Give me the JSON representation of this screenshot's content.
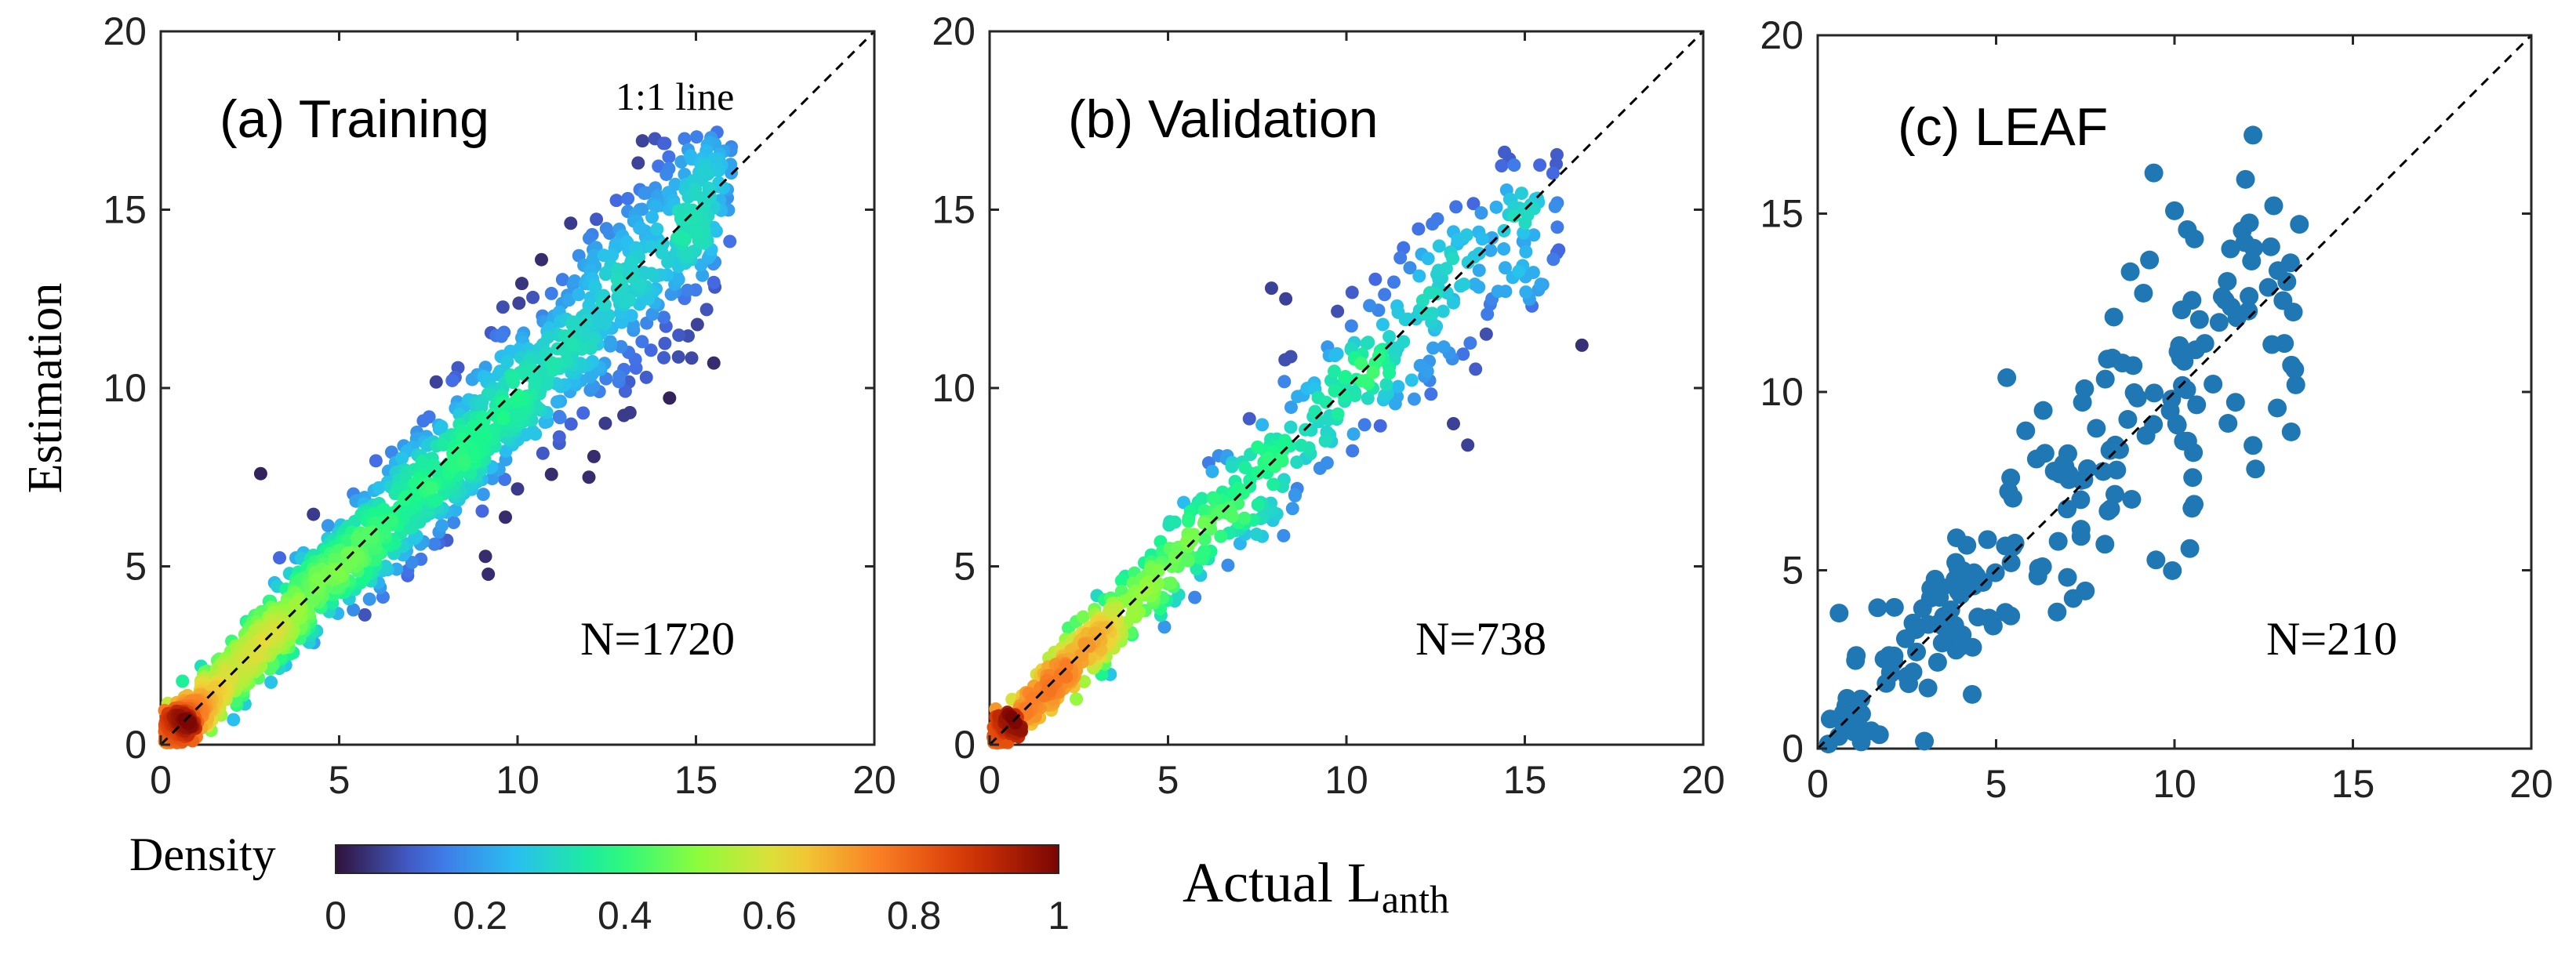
{
  "figure": {
    "x_axis_label": "Actual L",
    "x_axis_label_sub": "anth",
    "y_axis_label": "Estimation",
    "reference_line_label": "1:1 line"
  },
  "colorbar": {
    "label": "Density",
    "ticks": [
      "0",
      "0.2",
      "0.4",
      "0.6",
      "0.8",
      "1"
    ],
    "colormap": "turbo"
  },
  "chart_data": [
    {
      "type": "scatter",
      "panel": "a",
      "title": "(a) Training",
      "n_label": "N=1720",
      "color_mode": "density",
      "xlim": [
        0,
        20
      ],
      "ylim": [
        0,
        20
      ],
      "xticks": [
        "0",
        "5",
        "10",
        "15",
        "20"
      ],
      "yticks": [
        "0",
        "5",
        "10",
        "15",
        "20"
      ],
      "n_points": 1720,
      "noise_scale": 0.95,
      "sample_points": [
        {
          "x": 2.2,
          "y": 2.3
        },
        {
          "x": 3.1,
          "y": 3.0
        },
        {
          "x": 4.6,
          "y": 4.4
        },
        {
          "x": 7.4,
          "y": 7.3
        },
        {
          "x": 10.0,
          "y": 9.8
        },
        {
          "x": 12.8,
          "y": 12.8
        },
        {
          "x": 15.3,
          "y": 12.2
        },
        {
          "x": 14.7,
          "y": 13.5
        },
        {
          "x": 12.0,
          "y": 7.5
        },
        {
          "x": 2.8,
          "y": 7.6
        },
        {
          "x": 13.3,
          "y": 10.8
        },
        {
          "x": 15.5,
          "y": 10.7
        }
      ]
    },
    {
      "type": "scatter",
      "panel": "b",
      "title": "(b) Validation",
      "n_label": "N=738",
      "color_mode": "density",
      "xlim": [
        0,
        20
      ],
      "ylim": [
        0,
        20
      ],
      "xticks": [
        "0",
        "5",
        "10",
        "15",
        "20"
      ],
      "yticks": [
        "0",
        "5",
        "10",
        "15",
        "20"
      ],
      "n_points": 738,
      "noise_scale": 0.85,
      "sample_points": [
        {
          "x": 1.2,
          "y": 1.3
        },
        {
          "x": 2.4,
          "y": 3.0
        },
        {
          "x": 3.7,
          "y": 4.3
        },
        {
          "x": 4.6,
          "y": 4.4
        },
        {
          "x": 6.8,
          "y": 6.4
        },
        {
          "x": 7.9,
          "y": 12.8
        },
        {
          "x": 8.3,
          "y": 12.5
        },
        {
          "x": 15.5,
          "y": 12.9
        },
        {
          "x": 15.2,
          "y": 12.3
        },
        {
          "x": 16.6,
          "y": 11.2
        },
        {
          "x": 13.4,
          "y": 8.4
        },
        {
          "x": 13.0,
          "y": 9.0
        }
      ]
    },
    {
      "type": "scatter",
      "panel": "c",
      "title": "(c) LEAF",
      "n_label": "N=210",
      "color_mode": "single",
      "point_color": "#1f77b4",
      "xlim": [
        0,
        20
      ],
      "ylim": [
        0,
        20
      ],
      "xticks": [
        "0",
        "5",
        "10",
        "15",
        "20"
      ],
      "yticks": [
        "0",
        "5",
        "10",
        "15",
        "20"
      ],
      "n_points": 210,
      "noise_scale": 2.0,
      "sample_points": [
        {
          "x": 12.2,
          "y": 17.2
        },
        {
          "x": 13.5,
          "y": 14.7
        },
        {
          "x": 12.9,
          "y": 13.4
        },
        {
          "x": 9.3,
          "y": 13.7
        },
        {
          "x": 12.2,
          "y": 8.5
        },
        {
          "x": 13.4,
          "y": 10.2
        },
        {
          "x": 5.3,
          "y": 10.4
        },
        {
          "x": 0.6,
          "y": 3.8
        },
        {
          "x": 1.5,
          "y": 0.5
        },
        {
          "x": 7.0,
          "y": 4.8
        },
        {
          "x": 8.3,
          "y": 12.1
        },
        {
          "x": 10.2,
          "y": 12.3
        }
      ]
    }
  ]
}
